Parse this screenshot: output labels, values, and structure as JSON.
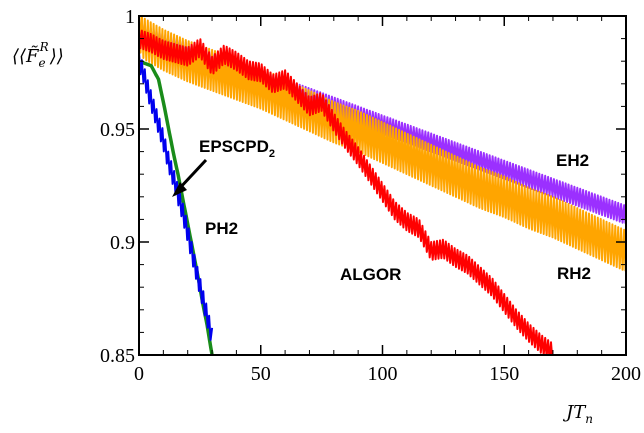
{
  "chart_data": {
    "type": "line",
    "title": "",
    "xlabel": "JT",
    "xlabel_sub": "n",
    "ylabel": "⟨⟨F̃",
    "ylabel_sub": "e",
    "ylabel_sup": "R",
    "ylabel_close": "⟩⟩",
    "xlim": [
      0,
      200
    ],
    "ylim": [
      0.85,
      1.0
    ],
    "xticks": [
      0,
      50,
      100,
      150,
      200
    ],
    "xtick_labels": [
      "0",
      "50",
      "100",
      "150",
      "200"
    ],
    "yticks": [
      0.85,
      0.9,
      0.95,
      1.0
    ],
    "ytick_labels": [
      "0.85",
      "0.9",
      "0.95",
      "1"
    ],
    "grid": false,
    "legend": "none",
    "series": [
      {
        "name": "EH2",
        "color": "#9b30ff",
        "x": [
          0,
          2,
          10,
          20,
          30,
          40,
          50,
          60,
          70,
          80,
          90,
          100,
          110,
          120,
          130,
          140,
          150,
          160,
          170,
          180,
          190,
          200
        ],
        "y": [
          0.995,
          0.992,
          0.988,
          0.984,
          0.98,
          0.976,
          0.972,
          0.968,
          0.964,
          0.96,
          0.956,
          0.952,
          0.948,
          0.944,
          0.94,
          0.936,
          0.932,
          0.928,
          0.924,
          0.92,
          0.916,
          0.912
        ],
        "amp": 0.004
      },
      {
        "name": "RH2",
        "color": "#ffa500",
        "x": [
          0,
          2,
          10,
          20,
          30,
          40,
          50,
          60,
          70,
          80,
          90,
          100,
          110,
          120,
          130,
          140,
          150,
          160,
          170,
          180,
          190,
          200
        ],
        "y": [
          0.994,
          0.99,
          0.985,
          0.98,
          0.976,
          0.972,
          0.968,
          0.963,
          0.958,
          0.953,
          0.949,
          0.944,
          0.939,
          0.934,
          0.929,
          0.924,
          0.92,
          0.915,
          0.911,
          0.906,
          0.901,
          0.896
        ],
        "amp": 0.009
      },
      {
        "name": "ALGOR",
        "color": "#ff0000",
        "x": [
          0,
          5,
          10,
          20,
          25,
          30,
          35,
          40,
          45,
          50,
          55,
          60,
          65,
          70,
          75,
          80,
          85,
          90,
          95,
          100,
          105,
          110,
          115,
          120,
          125,
          130,
          135,
          140,
          145,
          150,
          155,
          160,
          165,
          170
        ],
        "y": [
          0.99,
          0.988,
          0.985,
          0.982,
          0.986,
          0.978,
          0.983,
          0.98,
          0.976,
          0.975,
          0.97,
          0.972,
          0.966,
          0.96,
          0.962,
          0.953,
          0.945,
          0.938,
          0.93,
          0.922,
          0.914,
          0.909,
          0.906,
          0.896,
          0.897,
          0.893,
          0.89,
          0.885,
          0.88,
          0.873,
          0.866,
          0.86,
          0.855,
          0.851
        ],
        "amp": 0.004
      },
      {
        "name": "EPSCPD",
        "name_sub": "2",
        "color": "#1a8c1a",
        "x": [
          0,
          5,
          8,
          10,
          12,
          14,
          16,
          18,
          20,
          22,
          24,
          26,
          28,
          30
        ],
        "y": [
          0.98,
          0.978,
          0.972,
          0.962,
          0.951,
          0.94,
          0.93,
          0.919,
          0.908,
          0.897,
          0.886,
          0.874,
          0.863,
          0.85
        ],
        "amp": 0.0
      },
      {
        "name": "PH2",
        "color": "#0000ee",
        "x": [
          0,
          2,
          4,
          6,
          8,
          10,
          12,
          14,
          16,
          18,
          20,
          22,
          24,
          26,
          28,
          30
        ],
        "y": [
          0.98,
          0.974,
          0.966,
          0.959,
          0.952,
          0.945,
          0.936,
          0.929,
          0.921,
          0.913,
          0.904,
          0.894,
          0.885,
          0.876,
          0.867,
          0.858
        ],
        "amp": 0.004
      }
    ]
  }
}
